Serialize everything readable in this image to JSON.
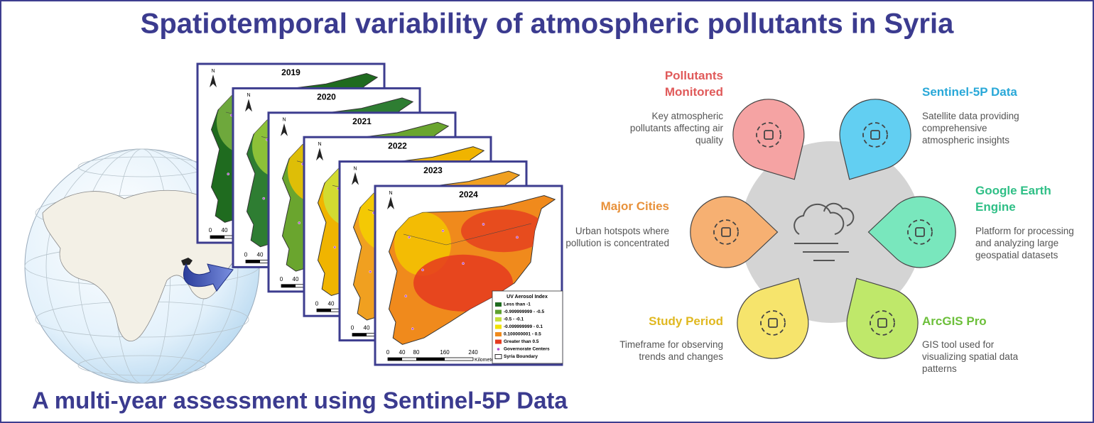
{
  "title": "Spatiotemporal variability of atmospheric pollutants in Syria",
  "subtitle": "A multi-year assessment using Sentinel-5P Data",
  "maps": {
    "years": [
      "2019",
      "2020",
      "2021",
      "2022",
      "2023",
      "2024"
    ],
    "north": "N",
    "scale_labels": [
      "0",
      "40",
      "80",
      "160",
      "240"
    ],
    "scale_unit": "Kilometers",
    "legend": {
      "title": "UV Aerosol Index",
      "items": [
        "Less than -1",
        "-0.999999999 - -0.5",
        "-0.5 - -0.1",
        "-0.099999999 - 0.1",
        "0.100000001 - 0.5",
        "Greater than 0.5",
        "Governorate Centers",
        "Syria Boundary"
      ]
    }
  },
  "infographic": {
    "items": [
      {
        "title": "Pollutants Monitored",
        "description": "Key atmospheric pollutants affecting air quality"
      },
      {
        "title": "Sentinel-5P Data",
        "description": "Satellite data providing comprehensive atmospheric insights"
      },
      {
        "title": "Major Cities",
        "description": "Urban hotspots where pollution is concentrated"
      },
      {
        "title": "Google Earth Engine",
        "description": "Platform for processing and analyzing large geospatial datasets"
      },
      {
        "title": "Study Period",
        "description": "Timeframe for observing trends and changes"
      },
      {
        "title": "ArcGIS Pro",
        "description": "GIS tool used for visualizing spatial data patterns"
      }
    ]
  }
}
